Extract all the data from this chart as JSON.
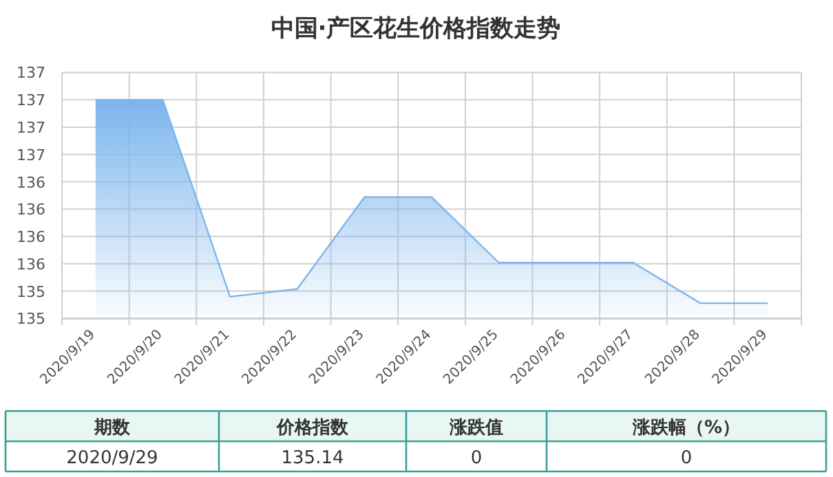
{
  "chart_data": {
    "type": "area",
    "title": "中国·产区花生价格指数走势",
    "categories": [
      "2020/9/19",
      "2020/9/20",
      "2020/9/21",
      "2020/9/22",
      "2020/9/23",
      "2020/9/24",
      "2020/9/25",
      "2020/9/26",
      "2020/9/27",
      "2020/9/28",
      "2020/9/29"
    ],
    "values": [
      137.0,
      137.0,
      135.2,
      135.27,
      136.11,
      136.11,
      135.51,
      135.51,
      135.51,
      135.14,
      135.14
    ],
    "color": "#7cb5ec",
    "ylim": [
      135,
      137.25
    ],
    "yticks": [
      {
        "value": 135,
        "label": "135"
      },
      {
        "value": 135.25,
        "label": "135"
      },
      {
        "value": 135.5,
        "label": "136"
      },
      {
        "value": 135.75,
        "label": "136"
      },
      {
        "value": 136,
        "label": "136"
      },
      {
        "value": 136.25,
        "label": "136"
      },
      {
        "value": 136.5,
        "label": "137"
      },
      {
        "value": 136.75,
        "label": "137"
      },
      {
        "value": 137,
        "label": "137"
      },
      {
        "value": 137.25,
        "label": "137"
      }
    ],
    "grid": true,
    "annotations": [
      "期数",
      "价格指数",
      "涨跌值",
      "涨跌幅（%）",
      "2020/9/29",
      "135.14",
      "0",
      "0"
    ]
  }
}
